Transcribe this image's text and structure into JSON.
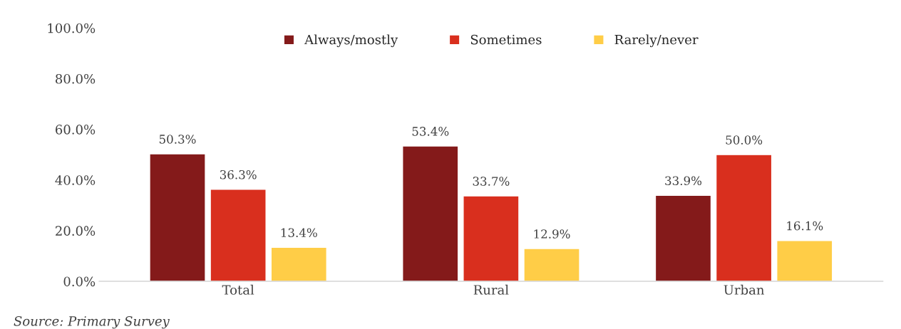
{
  "chart_data": {
    "type": "bar",
    "categories": [
      "Total",
      "Rural",
      "Urban"
    ],
    "series": [
      {
        "name": "Always/mostly",
        "color": "#841a1a",
        "values": [
          50.3,
          53.4,
          33.9
        ]
      },
      {
        "name": "Sometimes",
        "color": "#d92f1e",
        "values": [
          36.3,
          33.7,
          50.0
        ]
      },
      {
        "name": "Rarely/never",
        "color": "#ffcd47",
        "values": [
          13.4,
          12.9,
          16.1
        ]
      }
    ],
    "ylim": [
      0,
      100
    ],
    "yticks": [
      {
        "value": 0,
        "label": "0.0%"
      },
      {
        "value": 20,
        "label": "20.0%"
      },
      {
        "value": 40,
        "label": "40.0%"
      },
      {
        "value": 60,
        "label": "60.0%"
      },
      {
        "value": 80,
        "label": "80.0%"
      },
      {
        "value": 100,
        "label": "100.0%"
      }
    ],
    "value_labels": [
      [
        "50.3%",
        "53.4%",
        "33.9%"
      ],
      [
        "36.3%",
        "33.7%",
        "50.0%"
      ],
      [
        "13.4%",
        "12.9%",
        "16.1%"
      ]
    ],
    "grid": false,
    "legend": "top",
    "annotations": [
      "Source: Primary Survey"
    ]
  }
}
